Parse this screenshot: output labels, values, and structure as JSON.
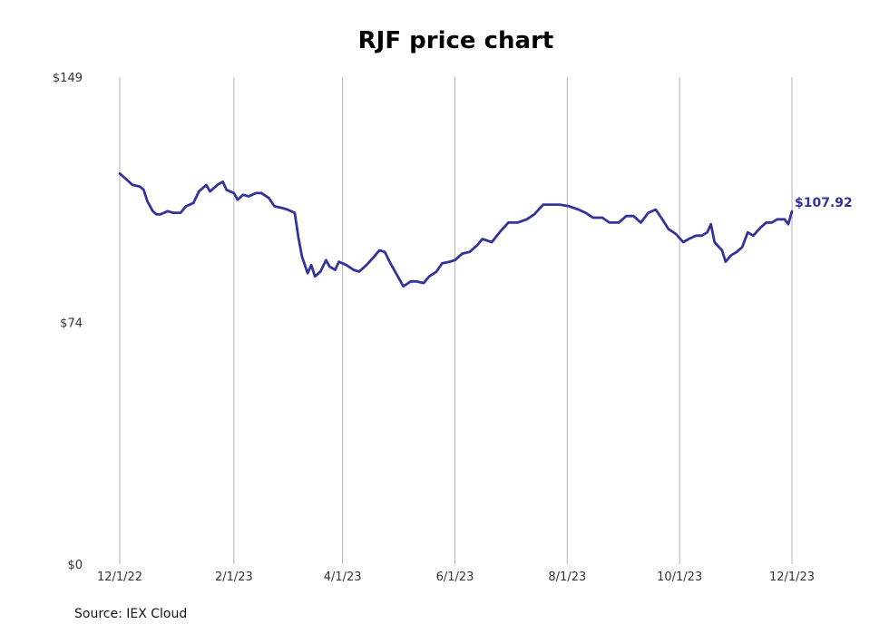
{
  "title": "RJF price chart",
  "source": "Source: IEX Cloud",
  "colors": {
    "line": "#333399",
    "grid": "#b3b3b3",
    "text": "#333333"
  },
  "chart_data": {
    "type": "line",
    "title": "RJF price chart",
    "xlabel": "",
    "ylabel": "",
    "ylim": [
      0,
      149
    ],
    "xlim": [
      "2022-12-01",
      "2023-12-01"
    ],
    "y_ticks": [
      0,
      74,
      149
    ],
    "y_tick_labels": [
      "$0",
      "$74",
      "$149"
    ],
    "x_ticks": [
      "2022-12-01",
      "2023-02-01",
      "2023-04-01",
      "2023-06-01",
      "2023-08-01",
      "2023-10-01",
      "2023-12-01"
    ],
    "x_tick_labels": [
      "12/1/22",
      "2/1/23",
      "4/1/23",
      "6/1/23",
      "8/1/23",
      "10/1/23",
      "12/1/23"
    ],
    "grid": "vertical",
    "last_value_label": "$107.92",
    "series": [
      {
        "values": [
          [
            "2022-12-01",
            119.5
          ],
          [
            "2022-12-05",
            117.5
          ],
          [
            "2022-12-08",
            116.0
          ],
          [
            "2022-12-12",
            115.5
          ],
          [
            "2022-12-14",
            114.5
          ],
          [
            "2022-12-16",
            111.0
          ],
          [
            "2022-12-19",
            108.0
          ],
          [
            "2022-12-21",
            107.0
          ],
          [
            "2022-12-23",
            107.0
          ],
          [
            "2022-12-27",
            108.0
          ],
          [
            "2022-12-30",
            107.5
          ],
          [
            "2023-01-03",
            107.5
          ],
          [
            "2023-01-06",
            109.5
          ],
          [
            "2023-01-10",
            110.5
          ],
          [
            "2023-01-13",
            114.0
          ],
          [
            "2023-01-17",
            116.0
          ],
          [
            "2023-01-19",
            114.0
          ],
          [
            "2023-01-23",
            116.0
          ],
          [
            "2023-01-26",
            117.0
          ],
          [
            "2023-01-28",
            114.5
          ],
          [
            "2023-02-01",
            113.5
          ],
          [
            "2023-02-03",
            111.5
          ],
          [
            "2023-02-06",
            113.0
          ],
          [
            "2023-02-09",
            112.5
          ],
          [
            "2023-02-13",
            113.5
          ],
          [
            "2023-02-16",
            113.5
          ],
          [
            "2023-02-20",
            112.0
          ],
          [
            "2023-02-23",
            109.5
          ],
          [
            "2023-02-27",
            109.0
          ],
          [
            "2023-03-02",
            108.5
          ],
          [
            "2023-03-06",
            107.5
          ],
          [
            "2023-03-08",
            100.0
          ],
          [
            "2023-03-10",
            94.0
          ],
          [
            "2023-03-13",
            89.0
          ],
          [
            "2023-03-15",
            91.5
          ],
          [
            "2023-03-17",
            88.0
          ],
          [
            "2023-03-20",
            89.5
          ],
          [
            "2023-03-23",
            93.0
          ],
          [
            "2023-03-25",
            91.0
          ],
          [
            "2023-03-28",
            90.0
          ],
          [
            "2023-03-30",
            92.5
          ],
          [
            "2023-04-03",
            91.5
          ],
          [
            "2023-04-07",
            90.0
          ],
          [
            "2023-04-10",
            89.5
          ],
          [
            "2023-04-14",
            91.5
          ],
          [
            "2023-04-18",
            94.0
          ],
          [
            "2023-04-21",
            96.0
          ],
          [
            "2023-04-24",
            95.5
          ],
          [
            "2023-04-27",
            92.0
          ],
          [
            "2023-04-29",
            90.0
          ],
          [
            "2023-05-02",
            87.0
          ],
          [
            "2023-05-04",
            85.0
          ],
          [
            "2023-05-08",
            86.5
          ],
          [
            "2023-05-11",
            86.5
          ],
          [
            "2023-05-15",
            86.0
          ],
          [
            "2023-05-18",
            88.0
          ],
          [
            "2023-05-22",
            89.5
          ],
          [
            "2023-05-25",
            92.0
          ],
          [
            "2023-05-29",
            92.5
          ],
          [
            "2023-06-01",
            93.0
          ],
          [
            "2023-06-05",
            95.0
          ],
          [
            "2023-06-09",
            95.5
          ],
          [
            "2023-06-13",
            97.5
          ],
          [
            "2023-06-16",
            99.5
          ],
          [
            "2023-06-21",
            98.5
          ],
          [
            "2023-06-26",
            102.0
          ],
          [
            "2023-06-30",
            104.5
          ],
          [
            "2023-07-05",
            104.5
          ],
          [
            "2023-07-10",
            105.5
          ],
          [
            "2023-07-14",
            107.0
          ],
          [
            "2023-07-19",
            110.0
          ],
          [
            "2023-07-24",
            110.0
          ],
          [
            "2023-07-28",
            110.0
          ],
          [
            "2023-08-02",
            109.5
          ],
          [
            "2023-08-07",
            108.5
          ],
          [
            "2023-08-11",
            107.5
          ],
          [
            "2023-08-15",
            106.0
          ],
          [
            "2023-08-20",
            106.0
          ],
          [
            "2023-08-24",
            104.5
          ],
          [
            "2023-08-29",
            104.5
          ],
          [
            "2023-09-02",
            106.5
          ],
          [
            "2023-09-06",
            106.5
          ],
          [
            "2023-09-10",
            104.5
          ],
          [
            "2023-09-14",
            107.5
          ],
          [
            "2023-09-18",
            108.5
          ],
          [
            "2023-09-21",
            106.0
          ],
          [
            "2023-09-25",
            102.5
          ],
          [
            "2023-09-29",
            101.0
          ],
          [
            "2023-10-03",
            98.5
          ],
          [
            "2023-10-06",
            99.5
          ],
          [
            "2023-10-10",
            100.5
          ],
          [
            "2023-10-13",
            100.5
          ],
          [
            "2023-10-16",
            101.5
          ],
          [
            "2023-10-18",
            104.0
          ],
          [
            "2023-10-20",
            98.5
          ],
          [
            "2023-10-24",
            96.0
          ],
          [
            "2023-10-26",
            92.5
          ],
          [
            "2023-10-29",
            94.5
          ],
          [
            "2023-11-01",
            95.5
          ],
          [
            "2023-11-04",
            97.0
          ],
          [
            "2023-11-07",
            101.5
          ],
          [
            "2023-11-10",
            100.5
          ],
          [
            "2023-11-14",
            103.0
          ],
          [
            "2023-11-17",
            104.5
          ],
          [
            "2023-11-20",
            104.5
          ],
          [
            "2023-11-23",
            105.5
          ],
          [
            "2023-11-27",
            105.5
          ],
          [
            "2023-11-29",
            104.0
          ],
          [
            "2023-12-01",
            107.92
          ]
        ]
      }
    ]
  }
}
